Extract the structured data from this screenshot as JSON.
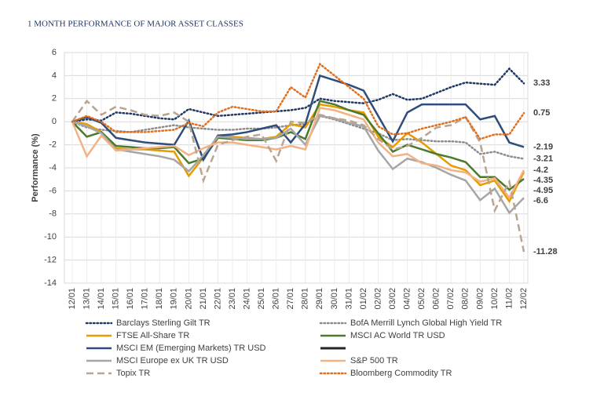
{
  "chart_data": {
    "type": "line",
    "title": "1 MONTH PERFORMANCE OF MAJOR ASSET CLASSES",
    "ylabel": "Performance (%)",
    "categories": [
      "12/01",
      "13/01",
      "14/01",
      "15/01",
      "16/01",
      "17/01",
      "18/01",
      "19/01",
      "20/01",
      "21/01",
      "22/01",
      "23/01",
      "24/01",
      "25/01",
      "26/01",
      "27/01",
      "28/01",
      "29/01",
      "30/01",
      "31/01",
      "01/02",
      "02/02",
      "03/02",
      "04/02",
      "05/02",
      "06/02",
      "07/02",
      "08/02",
      "09/02",
      "10/02",
      "11/02",
      "12/02"
    ],
    "ylim": [
      -14,
      6
    ],
    "yticks": [
      6,
      4,
      2,
      0,
      -2,
      -4,
      -6,
      -8,
      -10,
      -12,
      -14
    ],
    "grid": true,
    "series": [
      {
        "name": "Barclays Sterling Gilt TR",
        "color": "#1f3864",
        "dash": "dotted",
        "values": [
          0,
          0.2,
          0.1,
          0.8,
          0.7,
          0.5,
          0.3,
          0.2,
          1.1,
          0.8,
          0.5,
          0.6,
          0.7,
          0.8,
          0.9,
          1.0,
          1.2,
          2.0,
          1.8,
          1.7,
          1.6,
          1.9,
          2.4,
          1.9,
          2.0,
          2.5,
          3.0,
          3.4,
          3.3,
          3.2,
          4.6,
          3.33
        ]
      },
      {
        "name": "BofA Merrill Lynch Global High Yield TR",
        "color": "#8c8c8c",
        "dash": "dotted",
        "values": [
          0,
          -0.5,
          -0.7,
          -0.8,
          -0.9,
          -0.7,
          -0.5,
          -0.3,
          -0.5,
          -0.6,
          -0.7,
          -0.7,
          -0.6,
          -0.6,
          -0.5,
          -0.3,
          -0.2,
          0.5,
          0.2,
          -0.2,
          -0.6,
          -1.0,
          -1.6,
          -1.5,
          -1.6,
          -1.7,
          -1.7,
          -1.8,
          -2.8,
          -2.6,
          -3.0,
          -3.21
        ]
      },
      {
        "name": "FTSE All-Share TR",
        "color": "#e69b00",
        "dash": "solid",
        "values": [
          0,
          -0.2,
          -0.9,
          -2.3,
          -2.4,
          -2.4,
          -2.5,
          -2.6,
          -4.7,
          -3.1,
          -1.2,
          -1.3,
          -1.4,
          -1.5,
          -1.3,
          -0.2,
          -0.5,
          1.5,
          1.3,
          1.0,
          0.8,
          -1.3,
          -2.2,
          -1.0,
          -1.8,
          -2.8,
          -3.8,
          -4.2,
          -5.5,
          -5.1,
          -6.9,
          -4.35
        ]
      },
      {
        "name": "MSCI AC World TR USD",
        "color": "#4a7a2e",
        "dash": "solid",
        "values": [
          0,
          -1.3,
          -0.9,
          -2.1,
          -2.2,
          -2.3,
          -2.3,
          -2.2,
          -3.6,
          -3.2,
          -1.4,
          -1.5,
          -1.6,
          -1.6,
          -1.4,
          -0.9,
          -1.5,
          1.8,
          1.5,
          1.0,
          0.6,
          -1.0,
          -2.6,
          -2.0,
          -2.4,
          -2.8,
          -3.1,
          -3.5,
          -4.8,
          -4.8,
          -5.9,
          -4.95
        ]
      },
      {
        "name": "MSCI EM (Emerging Markets) TR USD",
        "color": "#2e4d7b",
        "dash": "solid",
        "values": [
          0,
          0.4,
          -0.1,
          -1.4,
          -1.6,
          -1.8,
          -1.9,
          -2.0,
          0.1,
          -3.3,
          -1.2,
          -1.1,
          -0.9,
          -0.6,
          -0.3,
          -1.8,
          -0.2,
          4.0,
          3.6,
          3.2,
          2.7,
          0.5,
          -1.7,
          0.8,
          1.5,
          1.5,
          1.5,
          1.5,
          0.2,
          0.5,
          -1.8,
          -2.19
        ]
      },
      {
        "name": "MSCI Europe ex UK TR USD",
        "color": "#a6a6a6",
        "dash": "solid",
        "values": [
          0,
          -0.4,
          -1.0,
          -2.4,
          -2.6,
          -2.8,
          -3.0,
          -3.3,
          -4.3,
          -2.9,
          -1.3,
          -1.4,
          -1.5,
          -1.5,
          -1.4,
          -0.6,
          -2.0,
          0.5,
          0.3,
          -0.1,
          -0.4,
          -2.5,
          -4.1,
          -3.2,
          -3.5,
          -4.0,
          -4.6,
          -5.1,
          -6.8,
          -5.8,
          -7.9,
          -6.6
        ]
      },
      {
        "name": "S&P 500 TR",
        "color": "#f4b183",
        "dash": "solid",
        "values": [
          0,
          -3.0,
          -1.2,
          -2.5,
          -2.4,
          -2.3,
          -2.2,
          -2.1,
          -2.9,
          -2.3,
          -1.8,
          -1.8,
          -2.0,
          -2.2,
          -2.4,
          -2.1,
          -2.4,
          1.2,
          1.0,
          0.6,
          0.2,
          -1.8,
          -3.0,
          -2.8,
          -3.6,
          -3.8,
          -4.2,
          -4.4,
          -5.2,
          -4.9,
          -6.6,
          -4.2
        ]
      },
      {
        "name": "Topix TR",
        "color": "#b9a48f",
        "dash": "dashed",
        "values": [
          0,
          1.8,
          0.6,
          1.3,
          1.0,
          0.6,
          0.5,
          0.8,
          0.0,
          -5.1,
          -2.0,
          -1.6,
          -1.3,
          -1.1,
          -3.4,
          0.0,
          -0.1,
          0.6,
          0.3,
          0.1,
          -0.3,
          -1.5,
          -2.4,
          -2.1,
          -1.4,
          -0.5,
          -0.3,
          0.4,
          -1.8,
          -7.7,
          -5.2,
          -11.28
        ]
      },
      {
        "name": "Bloomberg Commodity TR",
        "color": "#e07020",
        "dash": "dotted",
        "values": [
          0,
          0.5,
          0.0,
          -0.9,
          -0.9,
          -0.9,
          -0.8,
          -0.7,
          -0.1,
          -0.4,
          0.8,
          1.3,
          1.1,
          0.9,
          0.9,
          3.0,
          2.1,
          5.0,
          4.0,
          3.0,
          2.0,
          -0.4,
          -1.1,
          -1.0,
          -0.6,
          -0.3,
          0.0,
          0.4,
          -1.5,
          -1.1,
          -1.1,
          0.75
        ]
      }
    ]
  }
}
